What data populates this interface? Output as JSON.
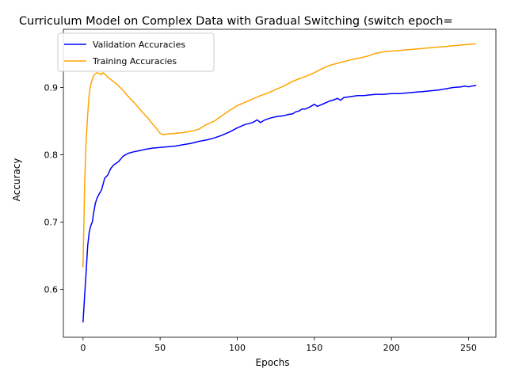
{
  "chart_data": {
    "type": "line",
    "title": "Curriculum Model on Complex Data with Gradual Switching (switch epoch=",
    "xlabel": "Epochs",
    "ylabel": "Accuracy",
    "xlim": [
      -12.75,
      267.75
    ],
    "ylim": [
      0.529,
      0.9865
    ],
    "xticks": [
      0,
      50,
      100,
      150,
      200,
      250
    ],
    "xtick_labels": [
      "0",
      "50",
      "100",
      "150",
      "200",
      "250"
    ],
    "yticks": [
      0.6,
      0.7,
      0.8,
      0.9
    ],
    "ytick_labels": [
      "0.6",
      "0.7",
      "0.8",
      "0.9"
    ],
    "grid": false,
    "legend_position": "upper-left",
    "series": [
      {
        "name": "Validation Accuracies",
        "color": "#0000ff",
        "x": [
          0,
          1,
          2,
          3,
          4,
          5,
          6,
          7,
          8,
          9,
          10,
          12,
          14,
          16,
          18,
          20,
          23,
          26,
          29,
          32,
          36,
          40,
          45,
          50,
          55,
          60,
          65,
          70,
          75,
          80,
          85,
          90,
          95,
          100,
          105,
          110,
          113,
          115,
          118,
          122,
          126,
          130,
          133,
          136,
          138,
          140,
          142,
          144,
          147,
          150,
          152,
          154,
          156,
          158,
          160,
          163,
          165,
          167,
          169,
          172,
          175,
          178,
          182,
          186,
          190,
          195,
          200,
          205,
          210,
          215,
          220,
          225,
          230,
          235,
          240,
          245,
          248,
          250,
          252,
          255
        ],
        "y": [
          0.551,
          0.59,
          0.625,
          0.665,
          0.685,
          0.695,
          0.7,
          0.715,
          0.728,
          0.735,
          0.74,
          0.748,
          0.765,
          0.77,
          0.78,
          0.785,
          0.79,
          0.798,
          0.802,
          0.804,
          0.806,
          0.808,
          0.81,
          0.811,
          0.812,
          0.813,
          0.815,
          0.817,
          0.82,
          0.822,
          0.825,
          0.829,
          0.834,
          0.84,
          0.845,
          0.848,
          0.852,
          0.848,
          0.852,
          0.855,
          0.857,
          0.858,
          0.86,
          0.861,
          0.864,
          0.865,
          0.868,
          0.868,
          0.871,
          0.875,
          0.872,
          0.874,
          0.876,
          0.878,
          0.88,
          0.882,
          0.884,
          0.881,
          0.885,
          0.886,
          0.887,
          0.888,
          0.888,
          0.889,
          0.89,
          0.89,
          0.891,
          0.891,
          0.892,
          0.893,
          0.894,
          0.895,
          0.896,
          0.898,
          0.9,
          0.901,
          0.902,
          0.901,
          0.902,
          0.903
        ]
      },
      {
        "name": "Training Accuracies",
        "color": "#ffa500",
        "x": [
          0,
          1,
          2,
          3,
          4,
          5,
          6,
          7,
          8,
          9,
          10,
          11,
          12,
          13,
          14,
          15,
          16,
          18,
          20,
          22,
          24,
          26,
          28,
          30,
          33,
          36,
          39,
          42,
          45,
          48,
          50,
          52,
          55,
          60,
          65,
          70,
          75,
          80,
          85,
          90,
          95,
          100,
          105,
          110,
          115,
          120,
          125,
          130,
          135,
          140,
          145,
          150,
          155,
          160,
          165,
          170,
          175,
          180,
          185,
          190,
          195,
          200,
          205,
          210,
          215,
          220,
          225,
          230,
          235,
          240,
          245,
          250,
          255
        ],
        "y": [
          0.633,
          0.755,
          0.82,
          0.86,
          0.89,
          0.905,
          0.912,
          0.918,
          0.92,
          0.922,
          0.921,
          0.921,
          0.919,
          0.922,
          0.92,
          0.918,
          0.915,
          0.912,
          0.908,
          0.905,
          0.9,
          0.896,
          0.89,
          0.885,
          0.878,
          0.87,
          0.862,
          0.855,
          0.846,
          0.838,
          0.832,
          0.83,
          0.831,
          0.832,
          0.833,
          0.835,
          0.838,
          0.845,
          0.85,
          0.858,
          0.866,
          0.873,
          0.878,
          0.883,
          0.888,
          0.892,
          0.897,
          0.902,
          0.908,
          0.913,
          0.917,
          0.922,
          0.928,
          0.933,
          0.936,
          0.939,
          0.942,
          0.944,
          0.947,
          0.951,
          0.953,
          0.954,
          0.955,
          0.956,
          0.957,
          0.958,
          0.959,
          0.96,
          0.961,
          0.962,
          0.963,
          0.964,
          0.965
        ]
      }
    ]
  }
}
